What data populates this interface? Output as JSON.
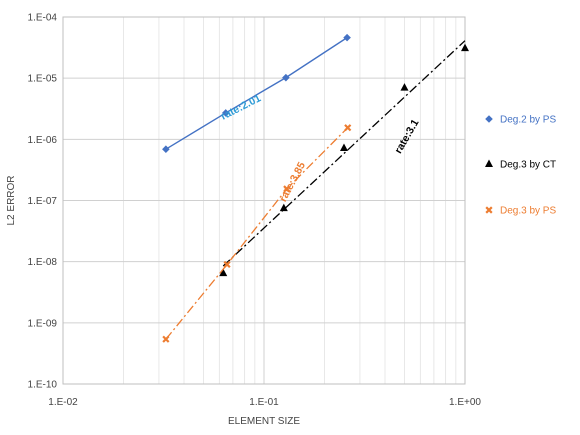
{
  "chart_data": {
    "type": "scatter",
    "xlabel": "ELEMENT SIZE",
    "ylabel": "L2 ERROR",
    "xscale": "log",
    "yscale": "log",
    "xlim": [
      0.01,
      1.0
    ],
    "ylim": [
      1e-10,
      0.0001
    ],
    "grid": true,
    "legend_position": "right",
    "x_ticks": [
      {
        "value": 0.01,
        "label": "1.E-02"
      },
      {
        "value": 0.1,
        "label": "1.E-01"
      },
      {
        "value": 1.0,
        "label": "1.E+00"
      }
    ],
    "y_ticks": [
      {
        "value": 0.0001,
        "label": "1.E-04"
      },
      {
        "value": 1e-05,
        "label": "1.E-05"
      },
      {
        "value": 1e-06,
        "label": "1.E-06"
      },
      {
        "value": 1e-07,
        "label": "1.E-07"
      },
      {
        "value": 1e-08,
        "label": "1.E-08"
      },
      {
        "value": 1e-09,
        "label": "1.E-09"
      },
      {
        "value": 1e-10,
        "label": "1.E-10"
      }
    ],
    "series": [
      {
        "name": "Deg.2 by PS",
        "color": "#4472C4",
        "marker": "diamond",
        "line": "solid",
        "x": [
          0.0325,
          0.0645,
          0.1285,
          0.259
        ],
        "y": [
          6.9e-07,
          2.7e-06,
          1.02e-05,
          4.6e-05
        ]
      },
      {
        "name": "Deg.3 by CT",
        "color": "#000000",
        "marker": "triangle",
        "line": "dashdot",
        "x": [
          0.0627,
          0.1255,
          0.25,
          0.5,
          1.0
        ],
        "y": [
          6.5e-09,
          7.5e-08,
          7.2e-07,
          7e-06,
          3.1e-05
        ],
        "trend": {
          "x": [
            0.0627,
            1.0
          ],
          "y": [
            8.5e-09,
            4.1e-05
          ]
        }
      },
      {
        "name": "Deg.3 by PS",
        "color": "#ED7D31",
        "marker": "x",
        "line": "dashdot",
        "x": [
          0.0325,
          0.0655,
          0.1298,
          0.261
        ],
        "y": [
          5.4e-10,
          9e-09,
          1.55e-07,
          1.55e-06
        ]
      }
    ],
    "annotations": [
      {
        "text": "rate:2.01",
        "color": "#2E9BD6",
        "x": 0.078,
        "y": 3e-06
      },
      {
        "text": "rate:3.85",
        "color": "#ED7D31",
        "x": 0.143,
        "y": 1.9e-07
      },
      {
        "text": "rate:3.1",
        "color": "#000000",
        "x": 0.53,
        "y": 1.05e-06
      }
    ]
  }
}
